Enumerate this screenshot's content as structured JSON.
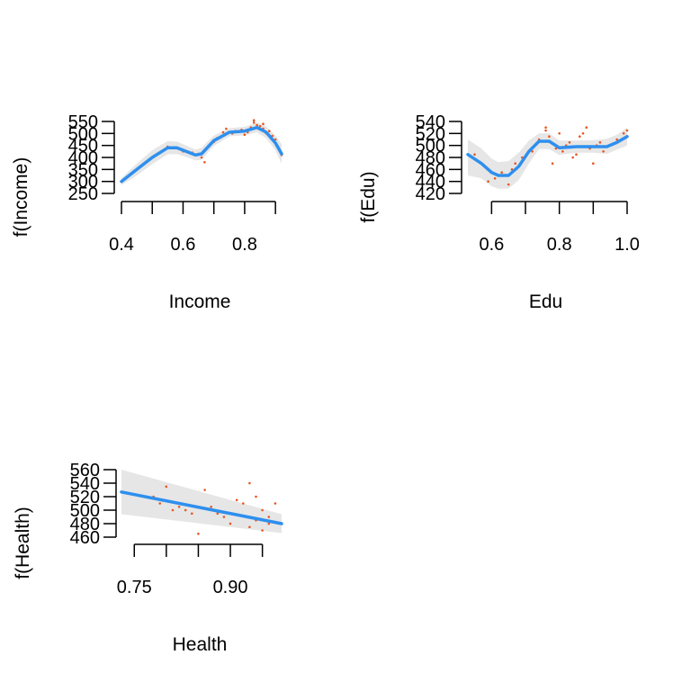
{
  "colors": {
    "smooth_line": "#2e8fee",
    "ci_band": "#e6e6e6",
    "points": "#e8551f",
    "axis": "#000000"
  },
  "chart_data": [
    {
      "type": "line",
      "title": "",
      "xlabel": "Income",
      "ylabel": "f(Income)",
      "xlim": [
        0.4,
        0.92
      ],
      "ylim": [
        250,
        550
      ],
      "x_ticks": [
        0.4,
        0.5,
        0.6,
        0.7,
        0.8,
        0.9
      ],
      "x_tick_labels": [
        "0.4",
        "",
        "0.6",
        "",
        "0.8",
        ""
      ],
      "y_ticks": [
        250,
        300,
        350,
        400,
        450,
        500,
        550
      ],
      "y_tick_labels": [
        "250",
        "300",
        "350",
        "400",
        "450",
        "500",
        "550"
      ],
      "series": [
        {
          "role": "smooth",
          "x": [
            0.4,
            0.45,
            0.5,
            0.55,
            0.58,
            0.61,
            0.64,
            0.66,
            0.7,
            0.75,
            0.8,
            0.84,
            0.87,
            0.9,
            0.92
          ],
          "y": [
            300,
            350,
            400,
            440,
            440,
            425,
            410,
            415,
            470,
            505,
            510,
            525,
            505,
            460,
            415
          ]
        },
        {
          "role": "ci_upper",
          "x": [
            0.4,
            0.45,
            0.5,
            0.55,
            0.58,
            0.61,
            0.64,
            0.66,
            0.7,
            0.75,
            0.8,
            0.84,
            0.87,
            0.9,
            0.92
          ],
          "y": [
            315,
            375,
            430,
            468,
            466,
            450,
            433,
            440,
            492,
            522,
            528,
            545,
            530,
            492,
            455
          ]
        },
        {
          "role": "ci_lower",
          "x": [
            0.4,
            0.45,
            0.5,
            0.55,
            0.58,
            0.61,
            0.64,
            0.66,
            0.7,
            0.75,
            0.8,
            0.84,
            0.87,
            0.9,
            0.92
          ],
          "y": [
            285,
            325,
            372,
            413,
            414,
            402,
            388,
            390,
            448,
            488,
            492,
            505,
            480,
            430,
            375
          ]
        },
        {
          "role": "points",
          "x": [
            0.55,
            0.6,
            0.63,
            0.65,
            0.66,
            0.67,
            0.7,
            0.71,
            0.73,
            0.74,
            0.76,
            0.77,
            0.79,
            0.8,
            0.81,
            0.82,
            0.83,
            0.83,
            0.84,
            0.85,
            0.86,
            0.86,
            0.87,
            0.88,
            0.89,
            0.9,
            0.92
          ],
          "y": [
            445,
            425,
            420,
            415,
            400,
            380,
            465,
            480,
            505,
            520,
            500,
            510,
            515,
            495,
            505,
            525,
            545,
            555,
            535,
            530,
            520,
            540,
            500,
            510,
            490,
            475,
            410
          ]
        }
      ]
    },
    {
      "type": "line",
      "title": "",
      "xlabel": "Edu",
      "ylabel": "f(Edu)",
      "xlim": [
        0.53,
        1.0
      ],
      "ylim": [
        420,
        540
      ],
      "x_ticks": [
        0.6,
        0.7,
        0.8,
        0.9,
        1.0
      ],
      "x_tick_labels": [
        "0.6",
        "",
        "0.8",
        "",
        "1.0"
      ],
      "y_ticks": [
        420,
        440,
        460,
        480,
        500,
        520,
        540
      ],
      "y_tick_labels": [
        "420",
        "440",
        "460",
        "480",
        "500",
        "520",
        "540"
      ],
      "series": [
        {
          "role": "smooth",
          "x": [
            0.53,
            0.57,
            0.6,
            0.62,
            0.65,
            0.68,
            0.71,
            0.74,
            0.77,
            0.8,
            0.85,
            0.9,
            0.94,
            0.97,
            1.0
          ],
          "y": [
            485,
            470,
            455,
            450,
            450,
            465,
            490,
            507,
            507,
            496,
            498,
            498,
            498,
            505,
            515
          ]
        },
        {
          "role": "ci_upper",
          "x": [
            0.53,
            0.57,
            0.6,
            0.62,
            0.65,
            0.68,
            0.71,
            0.74,
            0.77,
            0.8,
            0.85,
            0.9,
            0.94,
            0.97,
            1.0
          ],
          "y": [
            510,
            495,
            478,
            472,
            474,
            488,
            508,
            520,
            520,
            508,
            508,
            509,
            511,
            518,
            530
          ]
        },
        {
          "role": "ci_lower",
          "x": [
            0.53,
            0.57,
            0.6,
            0.62,
            0.65,
            0.68,
            0.71,
            0.74,
            0.77,
            0.8,
            0.85,
            0.9,
            0.94,
            0.97,
            1.0
          ],
          "y": [
            450,
            445,
            432,
            428,
            428,
            442,
            470,
            494,
            494,
            484,
            488,
            488,
            486,
            493,
            500
          ]
        },
        {
          "role": "points",
          "x": [
            0.55,
            0.59,
            0.61,
            0.63,
            0.65,
            0.66,
            0.67,
            0.69,
            0.72,
            0.74,
            0.76,
            0.76,
            0.77,
            0.78,
            0.79,
            0.8,
            0.81,
            0.82,
            0.83,
            0.84,
            0.85,
            0.86,
            0.87,
            0.88,
            0.89,
            0.9,
            0.91,
            0.92,
            0.93,
            0.95,
            0.97,
            0.99,
            1.0
          ],
          "y": [
            485,
            440,
            445,
            455,
            435,
            460,
            470,
            480,
            490,
            510,
            525,
            530,
            515,
            470,
            495,
            520,
            490,
            500,
            505,
            480,
            485,
            515,
            520,
            530,
            495,
            470,
            500,
            505,
            490,
            500,
            510,
            520,
            525
          ]
        }
      ]
    },
    {
      "type": "line",
      "title": "",
      "xlabel": "Health",
      "ylabel": "f(Health)",
      "xlim": [
        0.73,
        0.98
      ],
      "ylim": [
        460,
        560
      ],
      "x_ticks": [
        0.75,
        0.8,
        0.85,
        0.9,
        0.95
      ],
      "x_tick_labels": [
        "0.75",
        "",
        "",
        "0.90",
        ""
      ],
      "y_ticks": [
        460,
        480,
        500,
        520,
        540,
        560
      ],
      "y_tick_labels": [
        "460",
        "480",
        "500",
        "520",
        "540",
        "560"
      ],
      "series": [
        {
          "role": "smooth",
          "x": [
            0.73,
            0.98
          ],
          "y": [
            527,
            480
          ]
        },
        {
          "role": "ci_upper",
          "x": [
            0.73,
            0.98
          ],
          "y": [
            560,
            494
          ]
        },
        {
          "role": "ci_lower",
          "x": [
            0.73,
            0.98
          ],
          "y": [
            494,
            466
          ]
        },
        {
          "role": "points",
          "x": [
            0.74,
            0.78,
            0.79,
            0.8,
            0.81,
            0.82,
            0.83,
            0.84,
            0.85,
            0.86,
            0.87,
            0.88,
            0.89,
            0.9,
            0.91,
            0.92,
            0.93,
            0.93,
            0.94,
            0.94,
            0.95,
            0.95,
            0.96,
            0.96,
            0.97
          ],
          "y": [
            525,
            520,
            510,
            535,
            500,
            505,
            500,
            495,
            465,
            530,
            505,
            495,
            490,
            480,
            515,
            510,
            540,
            475,
            520,
            485,
            500,
            470,
            490,
            480,
            510
          ]
        }
      ]
    }
  ]
}
